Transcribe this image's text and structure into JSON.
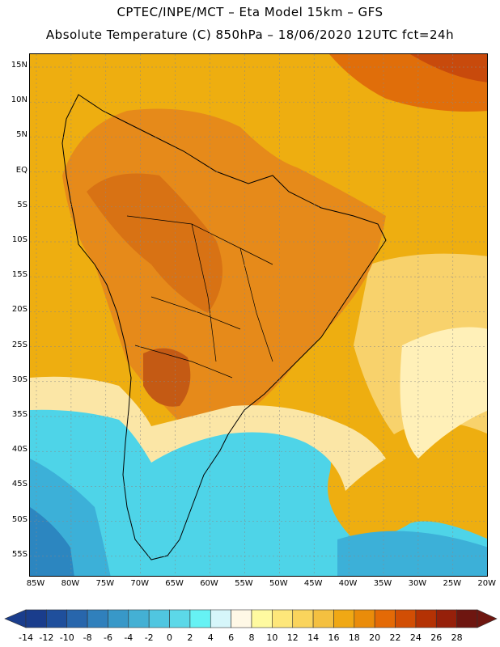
{
  "header": {
    "title_line1": "CPTEC/INPE/MCT –  Eta Model 15km – GFS",
    "title_line2": "Absolute Temperature (C) 850hPa – 18/06/2020 12UTC fct=24h"
  },
  "map": {
    "lat_labels": [
      "15N",
      "10N",
      "5N",
      "EQ",
      "5S",
      "10S",
      "15S",
      "20S",
      "25S",
      "30S",
      "35S",
      "40S",
      "45S",
      "50S",
      "55S"
    ],
    "lon_labels": [
      "85W",
      "80W",
      "75W",
      "70W",
      "65W",
      "60W",
      "55W",
      "50W",
      "45W",
      "40W",
      "35W",
      "30W",
      "25W",
      "20W"
    ],
    "colors": {
      "ocean_warm": "#eeae10",
      "land_warm": "#e68a1a",
      "hot": "#d06010",
      "very_hot": "#c04010",
      "cold": "#4ed4e8",
      "colder": "#3cb0d8",
      "coldest": "#2c86c0",
      "neutral": "#fff8e6",
      "pale_yellow": "#fce38a"
    }
  },
  "colorbar": {
    "labels": [
      "-14",
      "-12",
      "-10",
      "-8",
      "-6",
      "-4",
      "-2",
      "0",
      "2",
      "4",
      "6",
      "8",
      "10",
      "12",
      "14",
      "16",
      "18",
      "20",
      "22",
      "24",
      "26",
      "28"
    ],
    "colors": [
      "#1a3d8c",
      "#1f4f9c",
      "#2866ac",
      "#3080bc",
      "#3898c8",
      "#44b0d4",
      "#50c6e0",
      "#5cd8e8",
      "#66f2f4",
      "#d6f6fa",
      "#fff8e6",
      "#fffaa0",
      "#fee77a",
      "#fad45c",
      "#f4c040",
      "#f0a814",
      "#ea8c0a",
      "#e46a06",
      "#d24e04",
      "#b43204",
      "#96200a",
      "#6e1610"
    ]
  }
}
